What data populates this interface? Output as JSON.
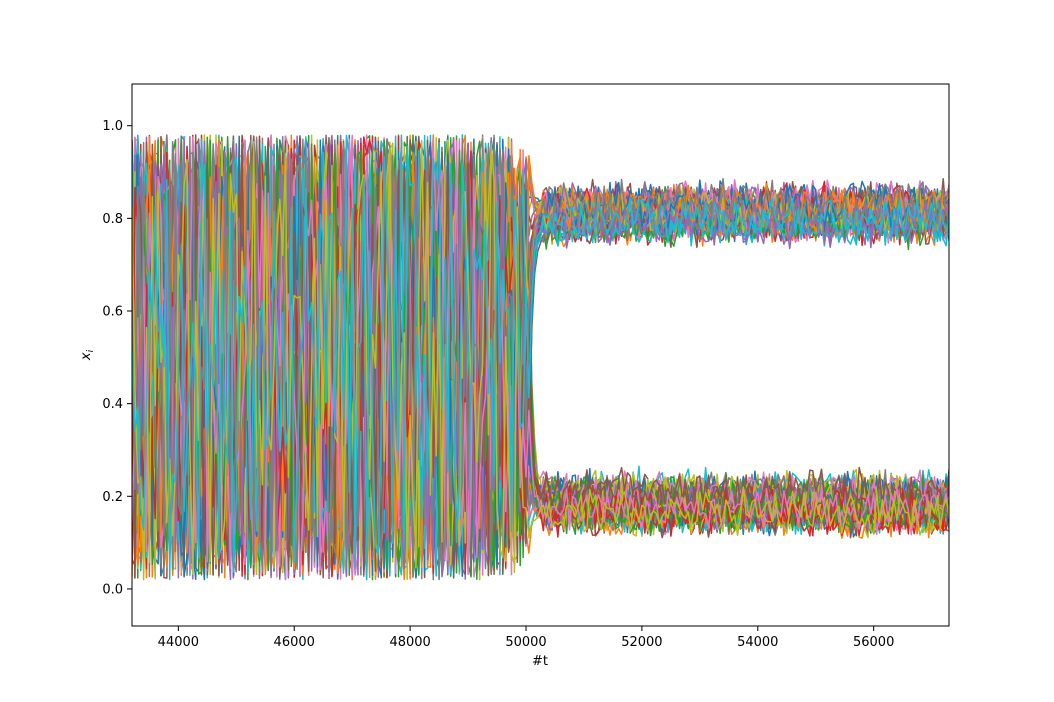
{
  "chart_data": {
    "type": "line",
    "title": "",
    "xlabel": "#t",
    "ylabel_base": "x",
    "ylabel_sub": "i",
    "xlim": [
      43200,
      57300
    ],
    "ylim": [
      -0.08,
      1.09
    ],
    "xticks": [
      44000,
      46000,
      48000,
      50000,
      52000,
      54000,
      56000
    ],
    "xtick_labels": [
      "44000",
      "46000",
      "48000",
      "50000",
      "52000",
      "54000",
      "56000"
    ],
    "yticks": [
      0.0,
      0.2,
      0.4,
      0.6,
      0.8,
      1.0
    ],
    "ytick_labels": [
      "0.0",
      "0.2",
      "0.4",
      "0.6",
      "0.8",
      "1.0"
    ],
    "transition_t": 50100,
    "time_step": 50,
    "series_count": 100,
    "colors": [
      "#1f77b4",
      "#ff7f0e",
      "#2ca02c",
      "#d62728",
      "#9467bd",
      "#8c564b",
      "#e377c2",
      "#7f7f7f",
      "#bcbd22",
      "#17becf"
    ],
    "regimes": {
      "before_transition": {
        "description_range": [
          0.0,
          1.0
        ],
        "min": 0.01,
        "max": 0.99
      },
      "after_transition_upper": {
        "mean": 0.81,
        "min": 0.71,
        "max": 0.89
      },
      "after_transition_lower": {
        "mean": 0.185,
        "min": 0.1,
        "max": 0.28
      }
    },
    "legend": "none",
    "grid": false
  }
}
